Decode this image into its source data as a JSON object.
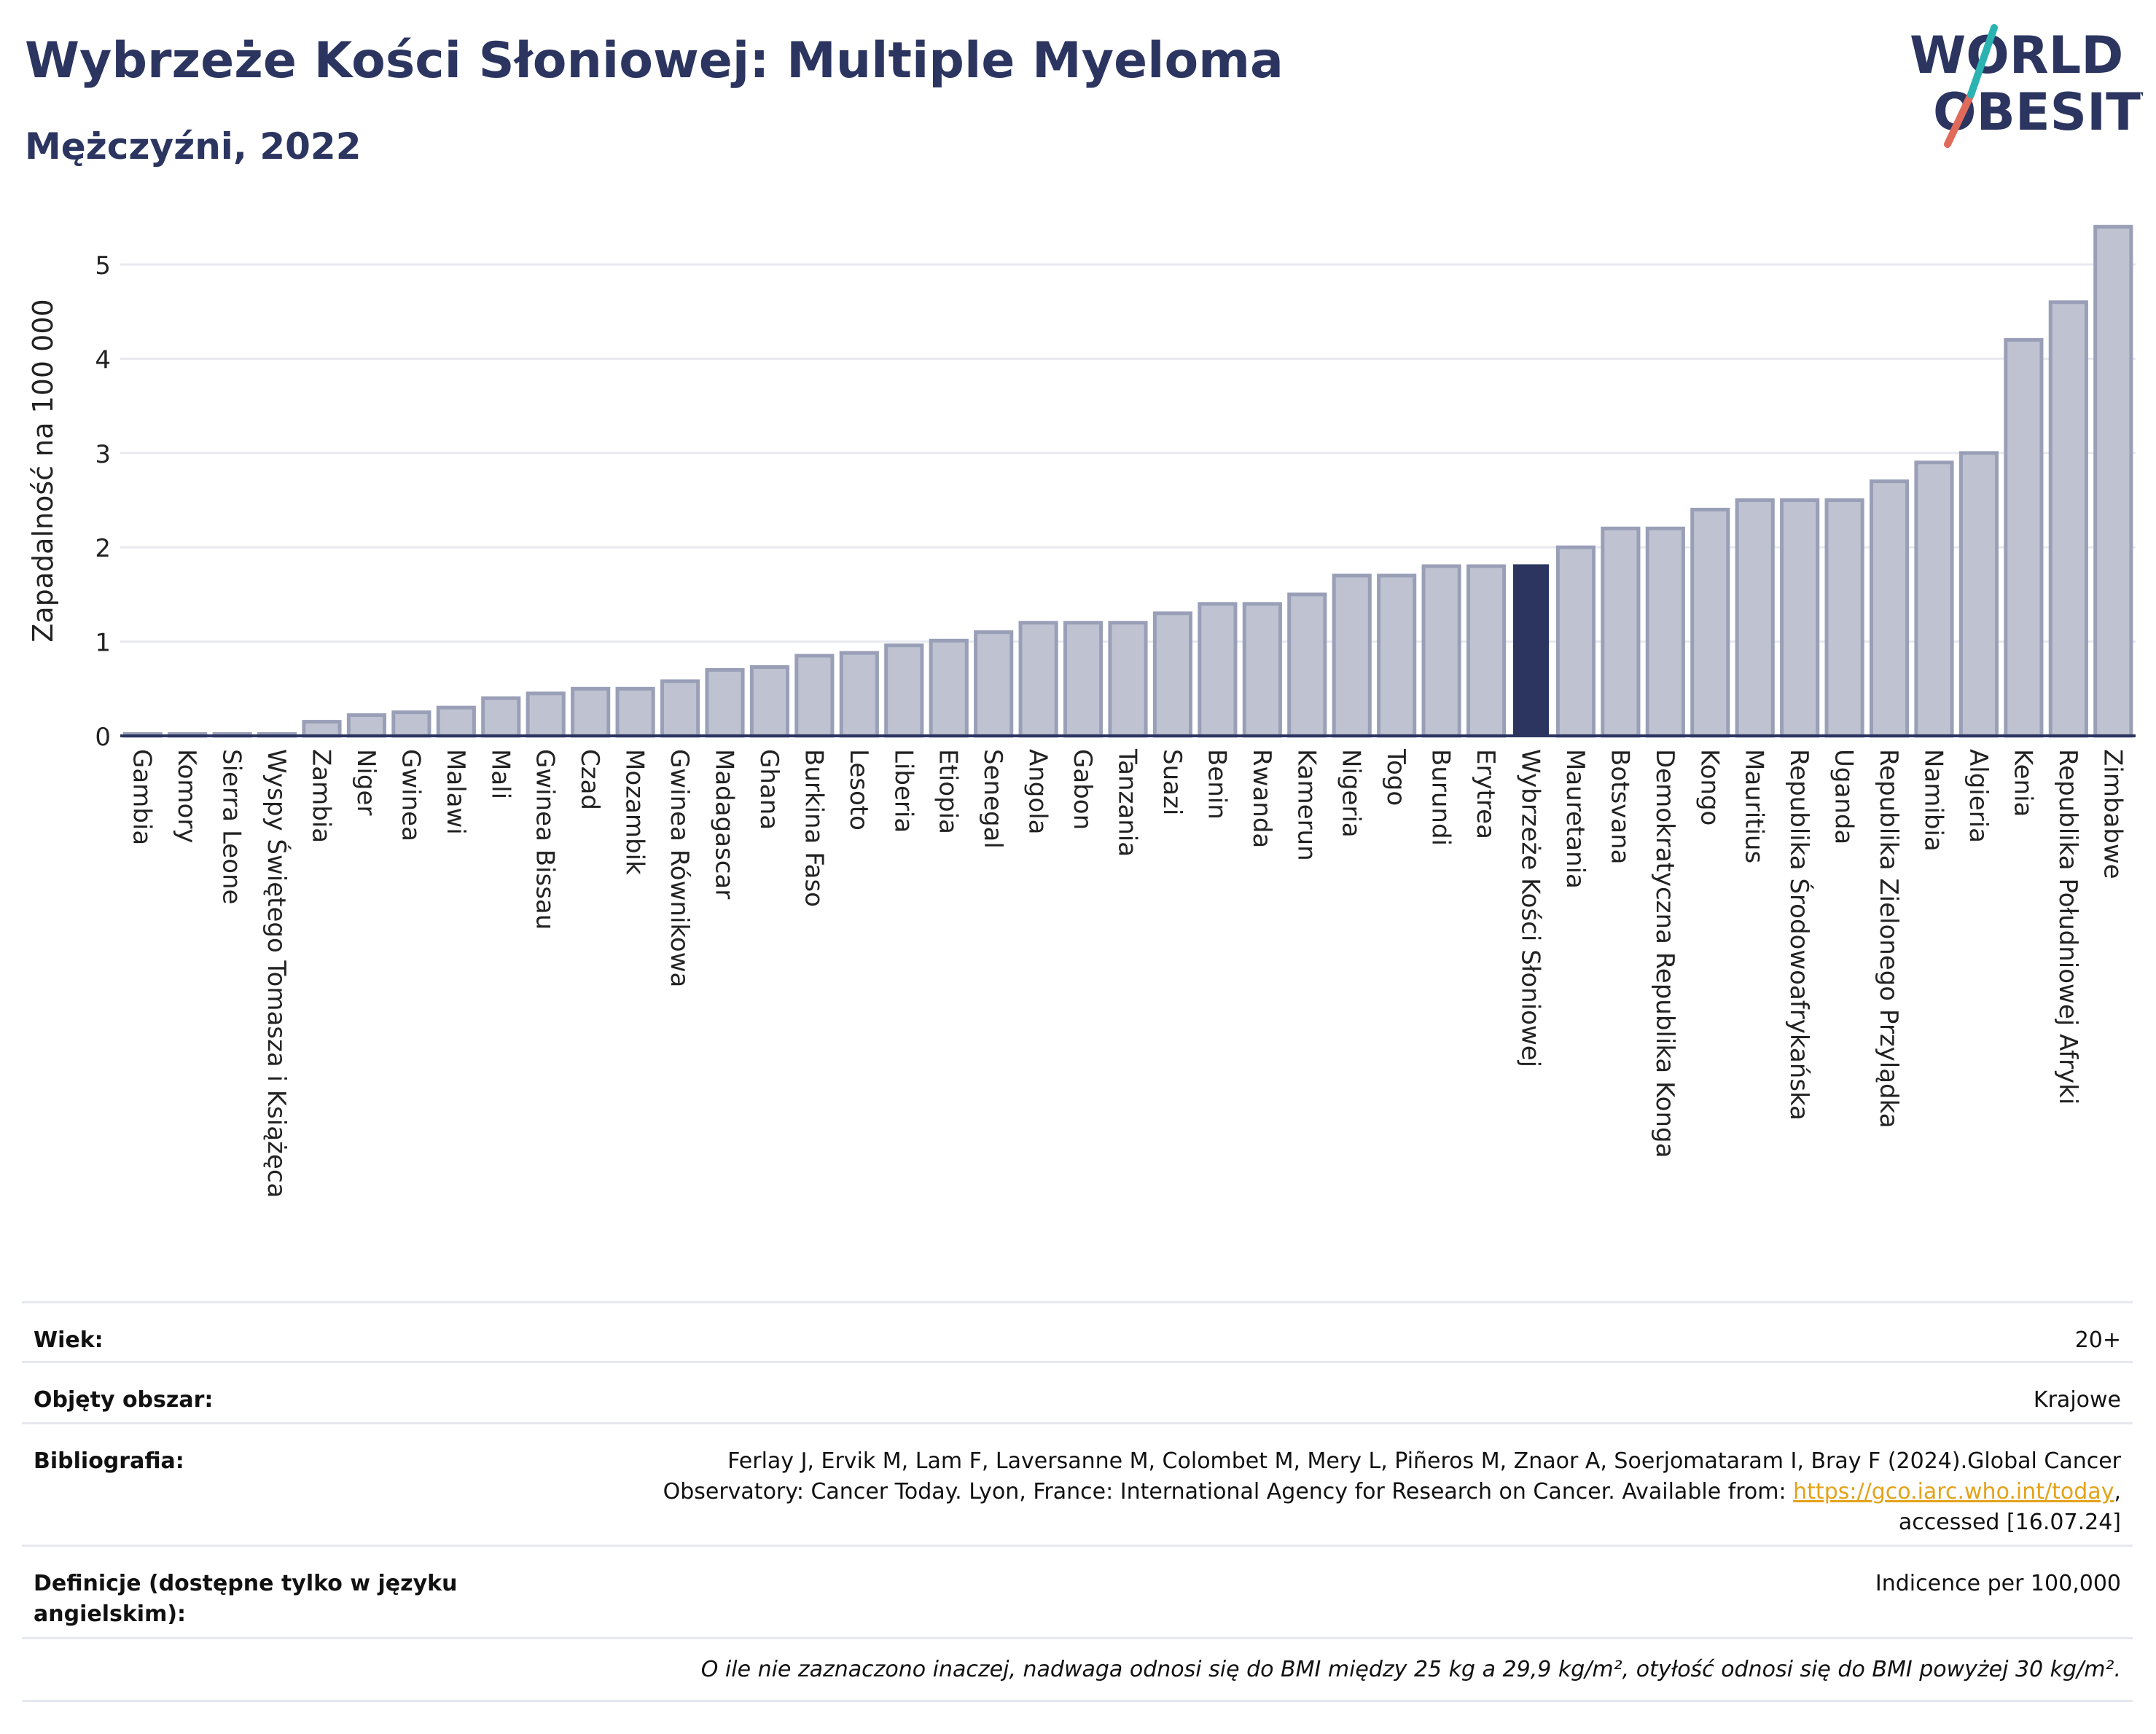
{
  "header": {
    "title": "Wybrzeże Kości Słoniowej: Multiple Myeloma",
    "subtitle": "Mężczyźni, 2022",
    "logo_line1": "WORLD",
    "logo_line2": "OBESITY"
  },
  "colors": {
    "bar": "#bfc3d1",
    "bar_border": "#9a9fb8",
    "highlight": "#2b3560",
    "accent_teal": "#2bb3b1",
    "accent_red": "#e06b5b"
  },
  "chart_data": {
    "type": "bar",
    "ylabel": "Zapadalność na 100 000",
    "ylim": [
      0,
      5.6
    ],
    "yticks": [
      0,
      1,
      2,
      3,
      4,
      5
    ],
    "grid": true,
    "highlight": "Wybrzeże Kości Słoniowej",
    "categories": [
      "Gambia",
      "Komory",
      "Sierra Leone",
      "Wyspy Świętego Tomasza i Książęca",
      "Zambia",
      "Niger",
      "Gwinea",
      "Malawi",
      "Mali",
      "Gwinea Bissau",
      "Czad",
      "Mozambik",
      "Gwinea Równikowa",
      "Madagascar",
      "Ghana",
      "Burkina Faso",
      "Lesoto",
      "Liberia",
      "Etiopia",
      "Senegal",
      "Angola",
      "Gabon",
      "Tanzania",
      "Suazi",
      "Benin",
      "Rwanda",
      "Kamerun",
      "Nigeria",
      "Togo",
      "Burundi",
      "Erytrea",
      "Wybrzeże Kości Słoniowej",
      "Mauretania",
      "Botsvana",
      "Demokratyczna Republika Konga",
      "Kongo",
      "Mauritius",
      "Republika Środowoafrykańska",
      "Uganda",
      "Republika Zielonego Przylądka",
      "Namibia",
      "Algieria",
      "Kenia",
      "Republika Południowej Afryki",
      "Zimbabwe"
    ],
    "values": [
      0.02,
      0.02,
      0.02,
      0.02,
      0.15,
      0.22,
      0.25,
      0.3,
      0.4,
      0.45,
      0.5,
      0.5,
      0.58,
      0.7,
      0.73,
      0.85,
      0.88,
      0.96,
      1.01,
      1.1,
      1.2,
      1.2,
      1.2,
      1.3,
      1.4,
      1.4,
      1.5,
      1.7,
      1.7,
      1.8,
      1.8,
      1.82,
      2.0,
      2.2,
      2.2,
      2.4,
      2.5,
      2.5,
      2.5,
      2.7,
      2.9,
      3.0,
      4.2,
      4.6,
      5.4
    ]
  },
  "info": {
    "age_label": "Wiek:",
    "age_value": "20+",
    "coverage_label": "Objęty obszar:",
    "coverage_value": "Krajowe",
    "bib_label": "Bibliografia:",
    "bib_line1": "Ferlay J, Ervik M, Lam F, Laversanne M, Colombet M, Mery L, Piñeros M, Znaor A, Soerjomataram I, Bray F (2024).Global Cancer",
    "bib_line2_pre": "Observatory: Cancer Today. Lyon, France: International Agency for Research on Cancer. Available from: ",
    "bib_link": "https://gco.iarc.who.int/today",
    "bib_line2_post": ",",
    "bib_line3": "accessed [16.07.24]",
    "def_label": "Definicje (dostępne tylko w języku angielskim):",
    "def_value": "Indicence per 100,000",
    "note": "O ile nie zaznaczono inaczej, nadwaga odnosi się do BMI między 25 kg a 29,9 kg/m², otyłość odnosi się do BMI powyżej 30 kg/m²."
  }
}
